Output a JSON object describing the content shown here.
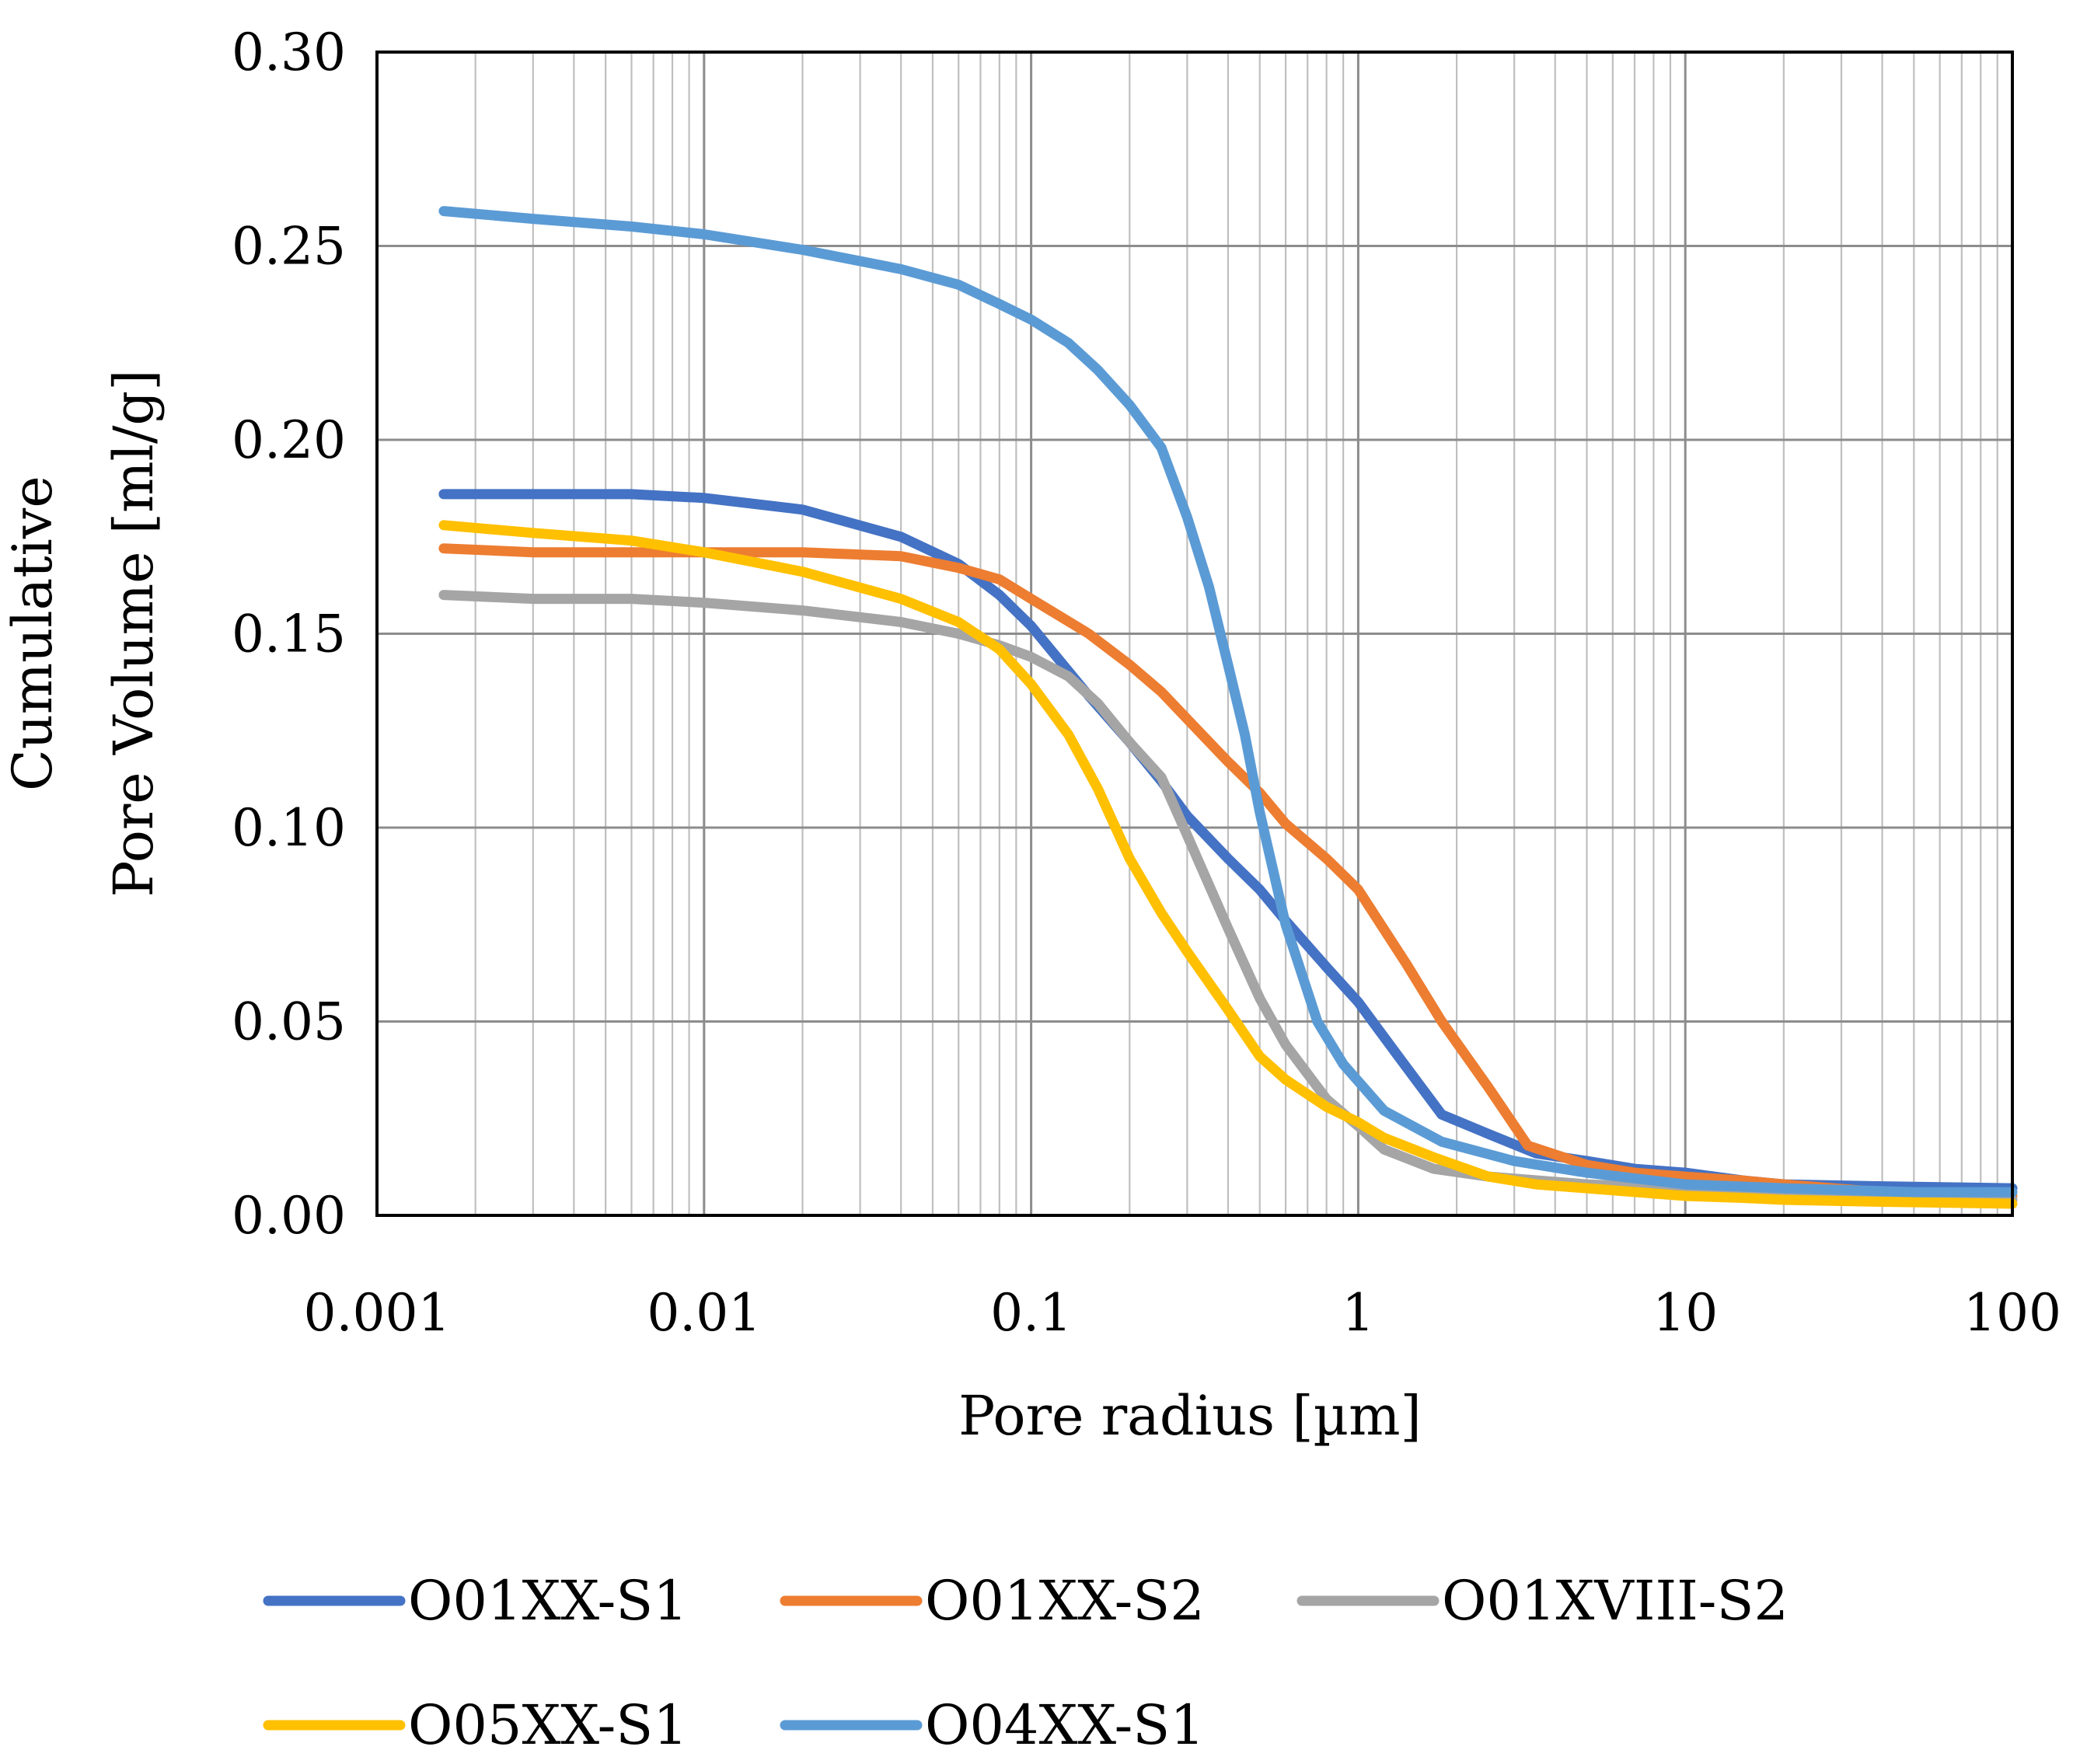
{
  "chart_data": {
    "type": "line",
    "title": "",
    "xlabel": "Pore radius [µm]",
    "ylabel_lines": [
      "Cumulative",
      "Pore  Volume [ml/g]"
    ],
    "x_scale": "log",
    "xlim": [
      0.001,
      100
    ],
    "ylim": [
      0,
      0.3
    ],
    "grid": true,
    "x_ticks": [
      {
        "value": 0.001,
        "label": "0.001"
      },
      {
        "value": 0.01,
        "label": "0.01"
      },
      {
        "value": 0.1,
        "label": "0.1"
      },
      {
        "value": 1,
        "label": "1"
      },
      {
        "value": 10,
        "label": "10"
      },
      {
        "value": 100,
        "label": "100"
      }
    ],
    "y_ticks": [
      {
        "value": 0.0,
        "label": "0.00"
      },
      {
        "value": 0.05,
        "label": "0.05"
      },
      {
        "value": 0.1,
        "label": "0.10"
      },
      {
        "value": 0.15,
        "label": "0.15"
      },
      {
        "value": 0.2,
        "label": "0.20"
      },
      {
        "value": 0.25,
        "label": "0.25"
      },
      {
        "value": 0.3,
        "label": "0.30"
      }
    ],
    "legend_position": "bottom",
    "series": [
      {
        "name": "O01XX-S1",
        "color": "#4472C4",
        "points": [
          [
            0.0016,
            0.186
          ],
          [
            0.003,
            0.186
          ],
          [
            0.006,
            0.186
          ],
          [
            0.01,
            0.185
          ],
          [
            0.02,
            0.182
          ],
          [
            0.04,
            0.175
          ],
          [
            0.06,
            0.168
          ],
          [
            0.08,
            0.16
          ],
          [
            0.1,
            0.152
          ],
          [
            0.15,
            0.134
          ],
          [
            0.2,
            0.122
          ],
          [
            0.25,
            0.112
          ],
          [
            0.3,
            0.103
          ],
          [
            0.4,
            0.092
          ],
          [
            0.5,
            0.084
          ],
          [
            0.6,
            0.076
          ],
          [
            0.8,
            0.064
          ],
          [
            1.0,
            0.055
          ],
          [
            1.3,
            0.042
          ],
          [
            1.8,
            0.026
          ],
          [
            2.5,
            0.021
          ],
          [
            3.5,
            0.016
          ],
          [
            5,
            0.014
          ],
          [
            7,
            0.012
          ],
          [
            10,
            0.011
          ],
          [
            15,
            0.009
          ],
          [
            20,
            0.008
          ],
          [
            40,
            0.0075
          ],
          [
            100,
            0.007
          ]
        ]
      },
      {
        "name": "O01XX-S2",
        "color": "#ED7D31",
        "points": [
          [
            0.0016,
            0.172
          ],
          [
            0.003,
            0.171
          ],
          [
            0.006,
            0.171
          ],
          [
            0.01,
            0.171
          ],
          [
            0.02,
            0.171
          ],
          [
            0.04,
            0.17
          ],
          [
            0.06,
            0.167
          ],
          [
            0.08,
            0.164
          ],
          [
            0.1,
            0.159
          ],
          [
            0.15,
            0.15
          ],
          [
            0.2,
            0.142
          ],
          [
            0.25,
            0.135
          ],
          [
            0.3,
            0.128
          ],
          [
            0.4,
            0.117
          ],
          [
            0.5,
            0.109
          ],
          [
            0.6,
            0.101
          ],
          [
            0.8,
            0.092
          ],
          [
            1.0,
            0.084
          ],
          [
            1.4,
            0.065
          ],
          [
            1.8,
            0.05
          ],
          [
            2.5,
            0.033
          ],
          [
            3.3,
            0.018
          ],
          [
            5,
            0.013
          ],
          [
            7,
            0.011
          ],
          [
            10,
            0.01
          ],
          [
            15,
            0.009
          ],
          [
            20,
            0.008
          ],
          [
            40,
            0.006
          ],
          [
            100,
            0.005
          ]
        ]
      },
      {
        "name": "O01XVIII-S2",
        "color": "#A5A5A5",
        "points": [
          [
            0.0016,
            0.16
          ],
          [
            0.003,
            0.159
          ],
          [
            0.006,
            0.159
          ],
          [
            0.01,
            0.158
          ],
          [
            0.02,
            0.156
          ],
          [
            0.04,
            0.153
          ],
          [
            0.06,
            0.15
          ],
          [
            0.08,
            0.147
          ],
          [
            0.1,
            0.144
          ],
          [
            0.13,
            0.139
          ],
          [
            0.16,
            0.132
          ],
          [
            0.2,
            0.122
          ],
          [
            0.25,
            0.113
          ],
          [
            0.3,
            0.098
          ],
          [
            0.4,
            0.074
          ],
          [
            0.5,
            0.056
          ],
          [
            0.6,
            0.044
          ],
          [
            0.8,
            0.03
          ],
          [
            1.0,
            0.023
          ],
          [
            1.2,
            0.017
          ],
          [
            1.7,
            0.012
          ],
          [
            2.5,
            0.01
          ],
          [
            5,
            0.008
          ],
          [
            10,
            0.007
          ],
          [
            20,
            0.006
          ],
          [
            40,
            0.005
          ],
          [
            100,
            0.004
          ]
        ]
      },
      {
        "name": "O05XX-S1",
        "color": "#FFC000",
        "points": [
          [
            0.0016,
            0.178
          ],
          [
            0.003,
            0.176
          ],
          [
            0.006,
            0.174
          ],
          [
            0.01,
            0.171
          ],
          [
            0.02,
            0.166
          ],
          [
            0.04,
            0.159
          ],
          [
            0.06,
            0.153
          ],
          [
            0.08,
            0.146
          ],
          [
            0.1,
            0.137
          ],
          [
            0.13,
            0.124
          ],
          [
            0.16,
            0.11
          ],
          [
            0.2,
            0.092
          ],
          [
            0.25,
            0.078
          ],
          [
            0.3,
            0.068
          ],
          [
            0.4,
            0.053
          ],
          [
            0.5,
            0.041
          ],
          [
            0.6,
            0.035
          ],
          [
            0.8,
            0.028
          ],
          [
            1.0,
            0.024
          ],
          [
            1.2,
            0.02
          ],
          [
            1.7,
            0.015
          ],
          [
            2.5,
            0.01
          ],
          [
            3.5,
            0.008
          ],
          [
            5,
            0.007
          ],
          [
            10,
            0.005
          ],
          [
            15,
            0.0045
          ],
          [
            20,
            0.004
          ],
          [
            40,
            0.0035
          ],
          [
            100,
            0.003
          ]
        ]
      },
      {
        "name": "O04XX-S1",
        "color": "#5B9BD5",
        "points": [
          [
            0.0016,
            0.259
          ],
          [
            0.003,
            0.257
          ],
          [
            0.006,
            0.255
          ],
          [
            0.01,
            0.253
          ],
          [
            0.02,
            0.249
          ],
          [
            0.04,
            0.244
          ],
          [
            0.06,
            0.24
          ],
          [
            0.08,
            0.235
          ],
          [
            0.1,
            0.231
          ],
          [
            0.13,
            0.225
          ],
          [
            0.16,
            0.218
          ],
          [
            0.2,
            0.209
          ],
          [
            0.25,
            0.198
          ],
          [
            0.3,
            0.18
          ],
          [
            0.35,
            0.162
          ],
          [
            0.4,
            0.142
          ],
          [
            0.45,
            0.124
          ],
          [
            0.5,
            0.104
          ],
          [
            0.6,
            0.075
          ],
          [
            0.75,
            0.05
          ],
          [
            0.9,
            0.039
          ],
          [
            1.2,
            0.027
          ],
          [
            1.8,
            0.019
          ],
          [
            3,
            0.014
          ],
          [
            5,
            0.011
          ],
          [
            10,
            0.008
          ],
          [
            20,
            0.007
          ],
          [
            50,
            0.006
          ],
          [
            100,
            0.006
          ]
        ]
      }
    ]
  }
}
